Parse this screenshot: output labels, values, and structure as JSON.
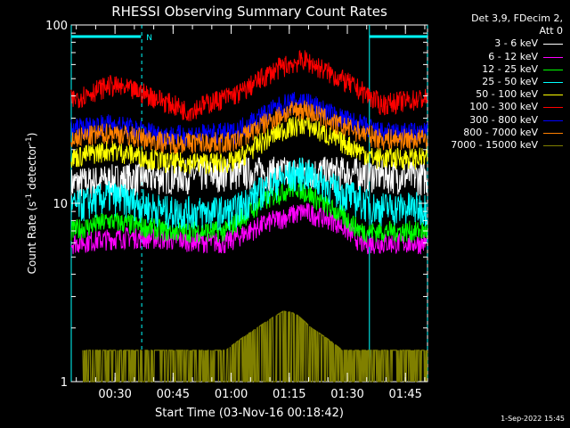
{
  "page": {
    "title": "RHESSI Observing Summary Count Rates",
    "stamp": "1-Sep-2022 15:45"
  },
  "legend": {
    "header_line1": "Det 3,9, FDecim 2,",
    "header_line2": "Att 0",
    "entries": [
      {
        "label": "3 - 6 keV",
        "color": "#ffffff"
      },
      {
        "label": "6 - 12 keV",
        "color": "#ff00ff"
      },
      {
        "label": "12 - 25 keV",
        "color": "#00ff00"
      },
      {
        "label": "25 - 50 keV",
        "color": "#00ffff"
      },
      {
        "label": "50 - 100 keV",
        "color": "#ffff00"
      },
      {
        "label": "100 - 300 keV",
        "color": "#ff0000"
      },
      {
        "label": "300 - 800 keV",
        "color": "#0000ff"
      },
      {
        "label": "800 - 7000 keV",
        "color": "#ff8000"
      },
      {
        "label": "7000 - 15000 keV",
        "color": "#808000"
      }
    ]
  },
  "chart_data": {
    "type": "line",
    "title": "RHESSI Observing Summary Count Rates",
    "xlabel": "Start Time (03-Nov-16 00:18:42)",
    "ylabel": "Count Rate (s⁻¹ detector⁻¹)",
    "ylabel_parts": {
      "pre": "Count Rate (s",
      "sup1": "-1",
      "mid": " detector",
      "sup2": "-1",
      "post": ")"
    },
    "yscale": "log",
    "ylim": [
      1,
      100
    ],
    "y_tick_labels": [
      "1",
      "10",
      "100"
    ],
    "xlim_minutes": [
      0,
      92
    ],
    "x_ticks": [
      {
        "label": "00:30",
        "min": 11.3
      },
      {
        "label": "00:45",
        "min": 26.3
      },
      {
        "label": "01:00",
        "min": 41.3
      },
      {
        "label": "01:15",
        "min": 56.3
      },
      {
        "label": "01:30",
        "min": 71.3
      },
      {
        "label": "01:45",
        "min": 86.3
      }
    ],
    "bars": [
      {
        "label": "N",
        "from_min": 0,
        "to_min": 18,
        "color": "#00ffff"
      },
      {
        "label": "",
        "from_min": 77,
        "to_min": 94,
        "color": "#00ffff"
      }
    ],
    "dashed_markers_min": [
      18.2,
      94.0
    ],
    "solid_markers_min": [
      0.0,
      77.0
    ],
    "series": [
      {
        "name": "3 - 6 keV",
        "color": "#000000",
        "points": [
          [
            0,
            13
          ],
          [
            18,
            14
          ],
          [
            45,
            15
          ],
          [
            55,
            15
          ],
          [
            70,
            15
          ],
          [
            92,
            14
          ]
        ]
      },
      {
        "name": "6 - 12 keV",
        "color": "#ff00ff",
        "points": [
          [
            0,
            6
          ],
          [
            15,
            6.5
          ],
          [
            40,
            6
          ],
          [
            52,
            8
          ],
          [
            60,
            9
          ],
          [
            68,
            8
          ],
          [
            75,
            6
          ],
          [
            92,
            6
          ]
        ]
      },
      {
        "name": "12 - 25 keV",
        "color": "#00ff00",
        "points": [
          [
            0,
            7
          ],
          [
            10,
            8
          ],
          [
            25,
            7
          ],
          [
            40,
            7
          ],
          [
            52,
            11
          ],
          [
            58,
            12.5
          ],
          [
            65,
            10
          ],
          [
            75,
            7
          ],
          [
            92,
            7
          ]
        ]
      },
      {
        "name": "25 - 50 keV",
        "color": "#00ffff",
        "points": [
          [
            0,
            9.5
          ],
          [
            10,
            11
          ],
          [
            25,
            9
          ],
          [
            42,
            9
          ],
          [
            55,
            14
          ],
          [
            60,
            15
          ],
          [
            68,
            12
          ],
          [
            78,
            9.5
          ],
          [
            92,
            9.5
          ]
        ]
      },
      {
        "name": "50 - 100 keV",
        "color": "#ffff00",
        "points": [
          [
            0,
            18
          ],
          [
            10,
            20
          ],
          [
            25,
            17
          ],
          [
            42,
            17
          ],
          [
            55,
            26
          ],
          [
            60,
            28
          ],
          [
            68,
            23
          ],
          [
            78,
            18
          ],
          [
            92,
            18
          ]
        ]
      },
      {
        "name": "100 - 300 keV",
        "color": "#ff0000",
        "points": [
          [
            0,
            38
          ],
          [
            10,
            46
          ],
          [
            18,
            42
          ],
          [
            30,
            33
          ],
          [
            44,
            42
          ],
          [
            54,
            58
          ],
          [
            60,
            64
          ],
          [
            68,
            52
          ],
          [
            80,
            36
          ],
          [
            92,
            39
          ]
        ]
      },
      {
        "name": "300 - 800 keV",
        "color": "#0000ff",
        "points": [
          [
            0,
            26
          ],
          [
            10,
            28
          ],
          [
            25,
            24
          ],
          [
            42,
            25
          ],
          [
            55,
            36
          ],
          [
            60,
            38
          ],
          [
            68,
            31
          ],
          [
            80,
            25
          ],
          [
            92,
            25
          ]
        ]
      },
      {
        "name": "800 - 7000 keV",
        "color": "#ff8000",
        "points": [
          [
            0,
            23
          ],
          [
            10,
            25
          ],
          [
            25,
            22
          ],
          [
            42,
            22
          ],
          [
            55,
            32
          ],
          [
            60,
            34
          ],
          [
            68,
            28
          ],
          [
            80,
            23
          ],
          [
            92,
            23
          ]
        ]
      },
      {
        "name": "7000 - 15000 keV",
        "color": "#808000",
        "points": [
          [
            3,
            1.5
          ],
          [
            12,
            1.5
          ],
          [
            40,
            1.5
          ],
          [
            48,
            2
          ],
          [
            55,
            2.5
          ],
          [
            58,
            2.4
          ],
          [
            62,
            2
          ],
          [
            70,
            1.5
          ],
          [
            78,
            1.5
          ],
          [
            92,
            1.5
          ]
        ]
      }
    ]
  }
}
